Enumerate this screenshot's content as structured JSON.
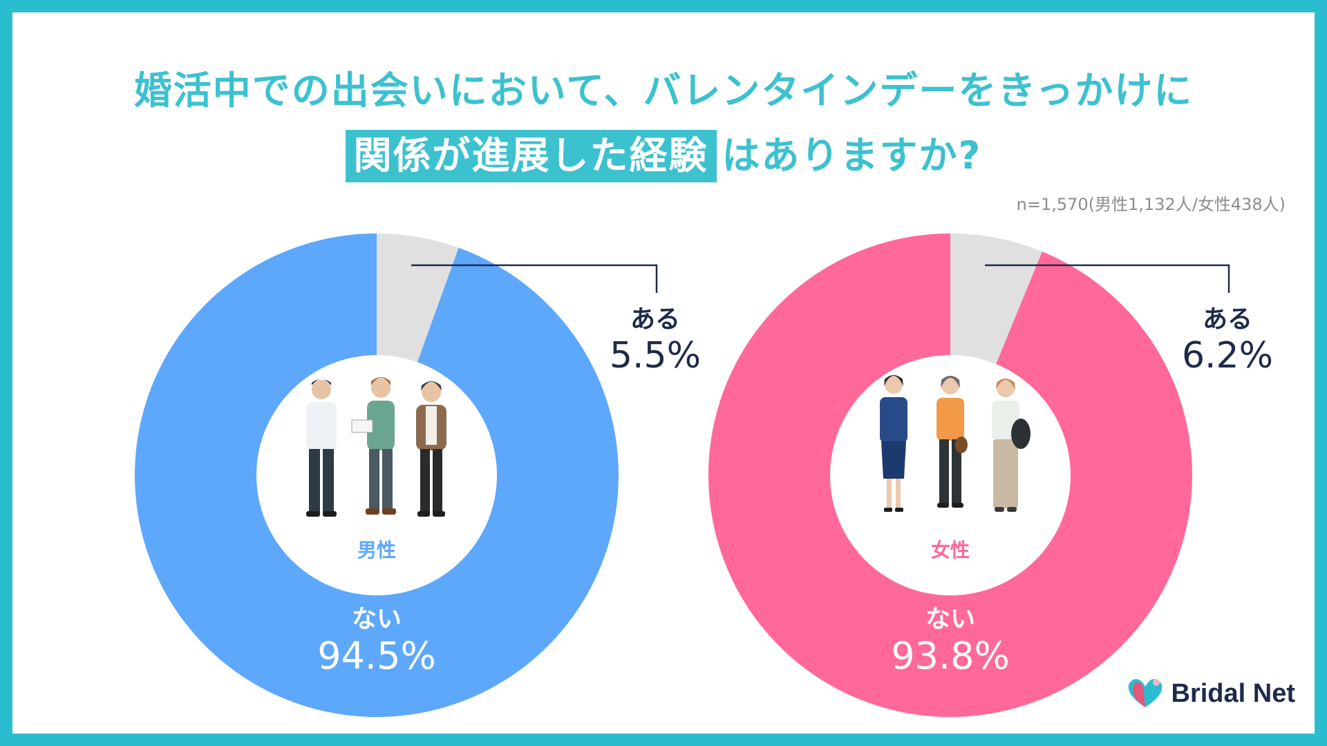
{
  "header": {
    "title_line1": "婚活中での出会いにおいて、バレンタインデーをきっかけに",
    "title_highlight": "関係が進展した経験",
    "title_line2_rest": "はありますか?",
    "sample_note": "n=1,570(男性1,132人/女性438人)"
  },
  "chart_data": [
    {
      "type": "pie",
      "center_label": "男性",
      "slices": [
        {
          "label": "ある",
          "value": 5.5,
          "display": "5.5%",
          "color": "#e0e0e0"
        },
        {
          "label": "ない",
          "value": 94.5,
          "display": "94.5%",
          "color": "#5ea8fc"
        }
      ]
    },
    {
      "type": "pie",
      "center_label": "女性",
      "slices": [
        {
          "label": "ある",
          "value": 6.2,
          "display": "6.2%",
          "color": "#e0e0e0"
        },
        {
          "label": "ない",
          "value": 93.8,
          "display": "93.8%",
          "color": "#ff6999"
        }
      ]
    }
  ],
  "logo": {
    "text": "Bridal Net",
    "icon": "bridal-net-heart-logo-icon",
    "colors": [
      "#e8567c",
      "#2bbdcf"
    ]
  }
}
